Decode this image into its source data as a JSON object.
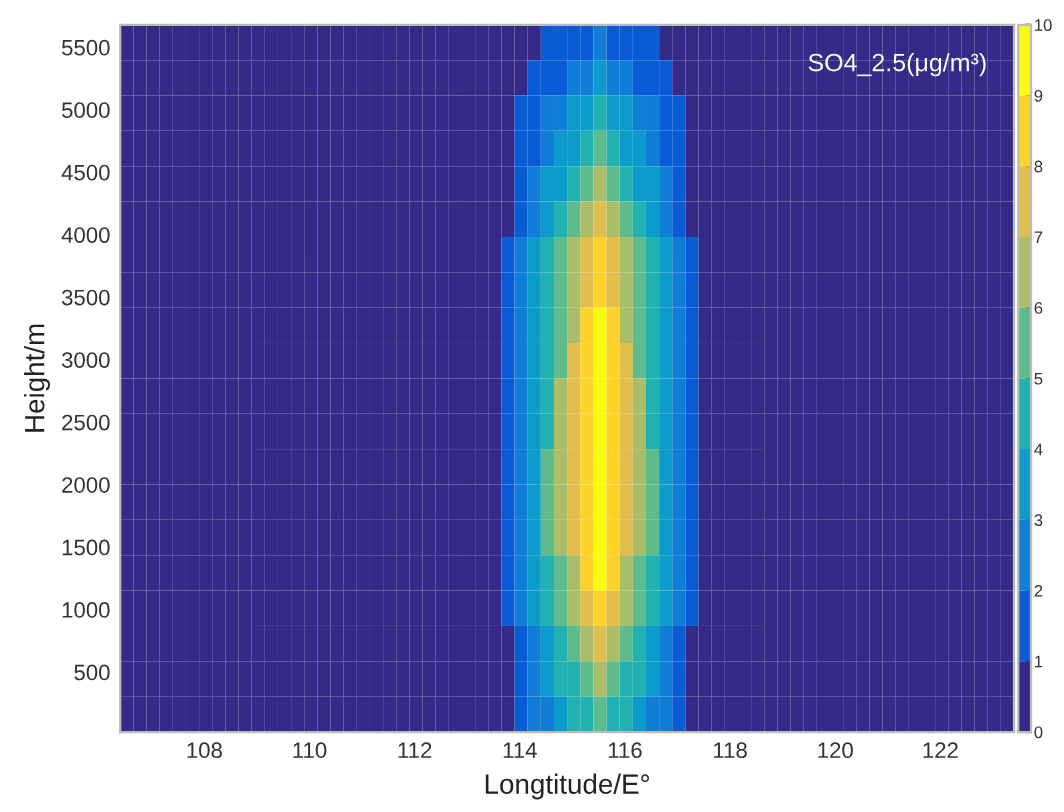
{
  "chart_data": {
    "type": "heatmap",
    "xlabel": "Longtitude/E°",
    "ylabel": "Height/m",
    "annotations": [
      "SO4_2.5(μg/m³)"
    ],
    "xlim": [
      106.4,
      123.4
    ],
    "ylim": [
      20,
      5680
    ],
    "xticks": [
      108,
      110,
      112,
      114,
      116,
      118,
      120,
      122
    ],
    "yticks": [
      500,
      1000,
      1500,
      2000,
      2500,
      3000,
      3500,
      4000,
      4500,
      5000,
      5500
    ],
    "clim": [
      0,
      10
    ],
    "cticks": [
      0,
      1,
      2,
      3,
      4,
      5,
      6,
      7,
      8,
      9,
      10
    ],
    "cells": [
      [
        0,
        0,
        0,
        0,
        0,
        0,
        0,
        0,
        0,
        0,
        0,
        0,
        0,
        0,
        0,
        0,
        0,
        0,
        0,
        0,
        0,
        0,
        0,
        0,
        0,
        0,
        0,
        0,
        0,
        0.3,
        0.5,
        0.8,
        1,
        1.3,
        1.5,
        1.8,
        2,
        1.8,
        1.5,
        1.3,
        1,
        0.8,
        0.5,
        0.3,
        0,
        0,
        0,
        0,
        0,
        0,
        0,
        0,
        0,
        0,
        0,
        0,
        0,
        0,
        0,
        0,
        0,
        0,
        0,
        0,
        0,
        0,
        0,
        0
      ],
      [
        0,
        0,
        0,
        0,
        0,
        0,
        0,
        0,
        0,
        0,
        0,
        0,
        0,
        0,
        0,
        0,
        0,
        0,
        0,
        0,
        0,
        0,
        0,
        0,
        0,
        0,
        0,
        0,
        0,
        0.4,
        0.8,
        1.2,
        1.6,
        1.9,
        2.3,
        2.7,
        3.1,
        2.7,
        2.3,
        1.9,
        1.6,
        1.2,
        0.8,
        0.4,
        0,
        0,
        0,
        0,
        0,
        0,
        0,
        0,
        0,
        0,
        0,
        0,
        0,
        0,
        0,
        0,
        0,
        0,
        0,
        0,
        0,
        0,
        0,
        0
      ],
      [
        0,
        0,
        0,
        0,
        0,
        0,
        0,
        0,
        0,
        0,
        0,
        0,
        0,
        0,
        0,
        0,
        0,
        0,
        0,
        0,
        0,
        0,
        0,
        0,
        0,
        0,
        0,
        0,
        0,
        0.5,
        1.0,
        1.5,
        2.1,
        2.6,
        3.1,
        3.6,
        4.1,
        3.6,
        3.1,
        2.6,
        2.1,
        1.5,
        1.0,
        0.5,
        0,
        0,
        0,
        0,
        0,
        0,
        0,
        0,
        0,
        0,
        0,
        0,
        0,
        0,
        0,
        0,
        0,
        0,
        0,
        0,
        0,
        0,
        0,
        0
      ],
      [
        0,
        0,
        0,
        0,
        0,
        0,
        0,
        0,
        0,
        0,
        0,
        0,
        0,
        0,
        0,
        0,
        0,
        0,
        0,
        0,
        0,
        0,
        0,
        0,
        0,
        0,
        0,
        0,
        0,
        0.6,
        1.3,
        1.9,
        2.6,
        3.2,
        3.8,
        4.5,
        5.1,
        4.5,
        3.8,
        3.2,
        2.6,
        1.9,
        1.3,
        0.6,
        0,
        0,
        0,
        0,
        0,
        0,
        0,
        0,
        0,
        0,
        0,
        0,
        0,
        0,
        0,
        0,
        0,
        0,
        0,
        0,
        0,
        0,
        0,
        0
      ],
      [
        0,
        0,
        0,
        0,
        0,
        0,
        0,
        0,
        0,
        0,
        0,
        0,
        0,
        0,
        0,
        0,
        0,
        0,
        0,
        0,
        0,
        0,
        0,
        0,
        0,
        0,
        0,
        0,
        0,
        0.8,
        1.6,
        2.4,
        3.2,
        3.9,
        4.7,
        5.5,
        6.3,
        5.5,
        4.7,
        3.9,
        3.2,
        2.4,
        1.6,
        0.8,
        0,
        0,
        0,
        0,
        0,
        0,
        0,
        0,
        0,
        0,
        0,
        0,
        0,
        0,
        0,
        0,
        0,
        0,
        0,
        0,
        0,
        0,
        0,
        0
      ],
      [
        0,
        0,
        0,
        0,
        0,
        0,
        0,
        0,
        0,
        0,
        0,
        0,
        0,
        0,
        0,
        0,
        0,
        0,
        0,
        0,
        0,
        0,
        0,
        0,
        0,
        0,
        0,
        0,
        0,
        0.9,
        1.8,
        2.7,
        3.6,
        4.5,
        5.4,
        6.3,
        7.2,
        6.3,
        5.4,
        4.5,
        3.6,
        2.7,
        1.8,
        0.9,
        0,
        0,
        0,
        0,
        0,
        0,
        0,
        0,
        0,
        0,
        0,
        0,
        0,
        0,
        0,
        0,
        0,
        0,
        0,
        0,
        0,
        0,
        0,
        0
      ],
      [
        0,
        0,
        0,
        0,
        0,
        0,
        0,
        0,
        0,
        0,
        0,
        0,
        0,
        0,
        0,
        0,
        0,
        0,
        0,
        0,
        0,
        0,
        0,
        0,
        0,
        0,
        0,
        0,
        0,
        1,
        2,
        3,
        4,
        5,
        6,
        7,
        8,
        7,
        6,
        5,
        4,
        3,
        2,
        1,
        0,
        0,
        0,
        0,
        0,
        0,
        0,
        0,
        0,
        0,
        0,
        0,
        0,
        0,
        0,
        0,
        0,
        0,
        0,
        0,
        0,
        0,
        0,
        0
      ],
      [
        0,
        0,
        0,
        0,
        0,
        0,
        0,
        0,
        0,
        0,
        0,
        0,
        0,
        0,
        0,
        0,
        0,
        0,
        0,
        0,
        0,
        0,
        0,
        0,
        0,
        0,
        0,
        0,
        0,
        1.1,
        2.1,
        3.2,
        4.3,
        5.3,
        6.4,
        7.4,
        8.5,
        7.4,
        6.4,
        5.3,
        4.3,
        3.2,
        2.1,
        1.1,
        0,
        0,
        0,
        0,
        0,
        0,
        0,
        0,
        0,
        0,
        0,
        0,
        0,
        0,
        0,
        0,
        0,
        0,
        0,
        0,
        0,
        0,
        0,
        0
      ],
      [
        0,
        0,
        0,
        0,
        0,
        0,
        0,
        0,
        0,
        0,
        0,
        0,
        0,
        0,
        0,
        0,
        0,
        0,
        0,
        0,
        0,
        0,
        0,
        0,
        0,
        0,
        0,
        0,
        0,
        1.1,
        2.3,
        3.4,
        4.6,
        5.7,
        6.8,
        8.0,
        9.1,
        8.0,
        6.8,
        5.7,
        4.6,
        3.4,
        2.3,
        1.1,
        0,
        0,
        0,
        0,
        0,
        0,
        0,
        0,
        0,
        0,
        0,
        0,
        0,
        0,
        0,
        0,
        0,
        0,
        0,
        0,
        0,
        0,
        0,
        0
      ],
      [
        0,
        0,
        0,
        0,
        0,
        0,
        0,
        0,
        0,
        0,
        0,
        0,
        0,
        0,
        0,
        0,
        0,
        0,
        0,
        0,
        0,
        0,
        0,
        0,
        0,
        0,
        0,
        0,
        0,
        1.2,
        2.4,
        3.5,
        4.7,
        5.9,
        7.1,
        8.2,
        9.4,
        8.2,
        7.1,
        5.9,
        4.7,
        3.5,
        2.4,
        1.2,
        0,
        0,
        0,
        0,
        0,
        0,
        0,
        0,
        0,
        0,
        0,
        0,
        0,
        0,
        0,
        0,
        0,
        0,
        0,
        0,
        0,
        0,
        0,
        0
      ],
      [
        0,
        0,
        0,
        0,
        0,
        0,
        0,
        0,
        0,
        0,
        0,
        0,
        0,
        0,
        0,
        0,
        0,
        0,
        0,
        0,
        0,
        0,
        0,
        0,
        0,
        0,
        0,
        0,
        0,
        1.2,
        2.4,
        3.6,
        4.8,
        6.0,
        7.2,
        8.4,
        9.6,
        8.4,
        7.2,
        6.0,
        4.8,
        3.6,
        2.4,
        1.2,
        0,
        0,
        0,
        0,
        0,
        0,
        0,
        0,
        0,
        0,
        0,
        0,
        0,
        0,
        0,
        0,
        0,
        0,
        0,
        0,
        0,
        0,
        0,
        0
      ],
      [
        0,
        0,
        0,
        0,
        0,
        0,
        0,
        0,
        0,
        0,
        0,
        0,
        0,
        0,
        0,
        0,
        0,
        0,
        0,
        0,
        0,
        0,
        0,
        0,
        0,
        0,
        0,
        0,
        0,
        1.2,
        2.5,
        3.7,
        4.9,
        6.1,
        7.4,
        8.6,
        9.8,
        8.6,
        7.4,
        6.1,
        4.9,
        3.7,
        2.5,
        1.2,
        0,
        0,
        0,
        0,
        0,
        0,
        0,
        0,
        0,
        0,
        0,
        0,
        0,
        0,
        0,
        0,
        0,
        0,
        0,
        0,
        0,
        0,
        0,
        0
      ],
      [
        0,
        0,
        0,
        0,
        0,
        0,
        0,
        0,
        0,
        0,
        0,
        0,
        0,
        0,
        0,
        0,
        0,
        0,
        0,
        0,
        0,
        0,
        0,
        0,
        0,
        0,
        0,
        0,
        0,
        1.2,
        2.5,
        3.7,
        5.0,
        6.2,
        7.4,
        8.7,
        9.9,
        8.7,
        7.4,
        6.2,
        5.0,
        3.7,
        2.5,
        1.2,
        0,
        0,
        0,
        0,
        0,
        0,
        0,
        0,
        0,
        0,
        0,
        0,
        0,
        0,
        0,
        0,
        0,
        0,
        0,
        0,
        0,
        0,
        0,
        0
      ],
      [
        0,
        0,
        0,
        0,
        0,
        0,
        0,
        0,
        0,
        0,
        0,
        0,
        0,
        0,
        0,
        0,
        0,
        0,
        0,
        0,
        0,
        0,
        0,
        0,
        0,
        0,
        0,
        0,
        0,
        1.3,
        2.5,
        3.8,
        5,
        6.3,
        7.5,
        8.8,
        10,
        8.8,
        7.5,
        6.3,
        5,
        3.8,
        2.5,
        1.3,
        0,
        0,
        0,
        0,
        0,
        0,
        0,
        0,
        0,
        0,
        0,
        0,
        0,
        0,
        0,
        0,
        0,
        0,
        0,
        0,
        0,
        0,
        0,
        0
      ],
      [
        0,
        0,
        0,
        0,
        0,
        0,
        0,
        0,
        0,
        0,
        0,
        0,
        0,
        0,
        0,
        0,
        0,
        0,
        0,
        0,
        0,
        0,
        0,
        0,
        0,
        0,
        0,
        0,
        0,
        1.2,
        2.5,
        3.7,
        5.0,
        6.2,
        7.4,
        8.7,
        9.9,
        8.7,
        7.4,
        6.2,
        5.0,
        3.7,
        2.5,
        1.2,
        0,
        0,
        0,
        0,
        0,
        0,
        0,
        0,
        0,
        0,
        0,
        0,
        0,
        0,
        0,
        0,
        0,
        0,
        0,
        0,
        0,
        0,
        0,
        0
      ],
      [
        0,
        0,
        0,
        0,
        0,
        0,
        0,
        0,
        0,
        0,
        0,
        0,
        0,
        0,
        0,
        0,
        0,
        0,
        0,
        0,
        0,
        0,
        0,
        0,
        0,
        0,
        0,
        0,
        0,
        1.2,
        2.3,
        3.5,
        4.6,
        5.8,
        6.9,
        8.1,
        9.2,
        8.1,
        6.9,
        5.8,
        4.6,
        3.5,
        2.3,
        1.2,
        0,
        0,
        0,
        0,
        0,
        0,
        0,
        0,
        0,
        0,
        0,
        0,
        0,
        0,
        0,
        0,
        0,
        0,
        0,
        0,
        0,
        0,
        0,
        0
      ],
      [
        0,
        0,
        0,
        0,
        0,
        0,
        0,
        0,
        0,
        0,
        0,
        0,
        0,
        0,
        0,
        0,
        0,
        0,
        0,
        0,
        0,
        0,
        0,
        0,
        0,
        0,
        0,
        0,
        0,
        1.0,
        2.1,
        3.1,
        4.2,
        5.2,
        6.2,
        7.3,
        8.3,
        7.3,
        6.2,
        5.2,
        4.2,
        3.1,
        2.1,
        1.0,
        0,
        0,
        0,
        0,
        0,
        0,
        0,
        0,
        0,
        0,
        0,
        0,
        0,
        0,
        0,
        0,
        0,
        0,
        0,
        0,
        0,
        0,
        0,
        0
      ],
      [
        0,
        0,
        0,
        0,
        0,
        0,
        0,
        0,
        0,
        0,
        0,
        0,
        0,
        0,
        0,
        0,
        0,
        0,
        0,
        0,
        0,
        0,
        0,
        0,
        0,
        0,
        0,
        0,
        0,
        0.9,
        1.9,
        2.8,
        3.7,
        4.6,
        5.6,
        6.5,
        7.4,
        6.5,
        5.6,
        4.6,
        3.7,
        2.8,
        1.9,
        0.9,
        0,
        0,
        0,
        0,
        0,
        0,
        0,
        0,
        0,
        0,
        0,
        0,
        0,
        0,
        0,
        0,
        0,
        0,
        0,
        0,
        0,
        0,
        0,
        0
      ],
      [
        0,
        0,
        0,
        0,
        0,
        0,
        0,
        0,
        0,
        0,
        0,
        0,
        0,
        0,
        0,
        0,
        0,
        0,
        0,
        0,
        0,
        0,
        0,
        0,
        0,
        0,
        0,
        0,
        0,
        0.8,
        1.6,
        2.4,
        3.2,
        4.0,
        4.8,
        5.6,
        6.4,
        5.6,
        4.8,
        4.0,
        3.2,
        2.4,
        1.6,
        0.8,
        0,
        0,
        0,
        0,
        0,
        0,
        0,
        0,
        0,
        0,
        0,
        0,
        0,
        0,
        0,
        0,
        0,
        0,
        0,
        0,
        0,
        0,
        0,
        0
      ],
      [
        0,
        0,
        0,
        0,
        0,
        0,
        0,
        0,
        0,
        0,
        0,
        0,
        0,
        0,
        0,
        0,
        0,
        0,
        0,
        0,
        0,
        0,
        0,
        0,
        0,
        0,
        0,
        0,
        0,
        0.7,
        1.4,
        2.1,
        2.8,
        3.5,
        4.2,
        4.9,
        5.6,
        4.9,
        4.2,
        3.5,
        2.8,
        2.1,
        1.4,
        0.7,
        0,
        0,
        0,
        0,
        0,
        0,
        0,
        0,
        0,
        0,
        0,
        0,
        0,
        0,
        0,
        0,
        0,
        0,
        0,
        0,
        0,
        0,
        0,
        0
      ]
    ]
  }
}
